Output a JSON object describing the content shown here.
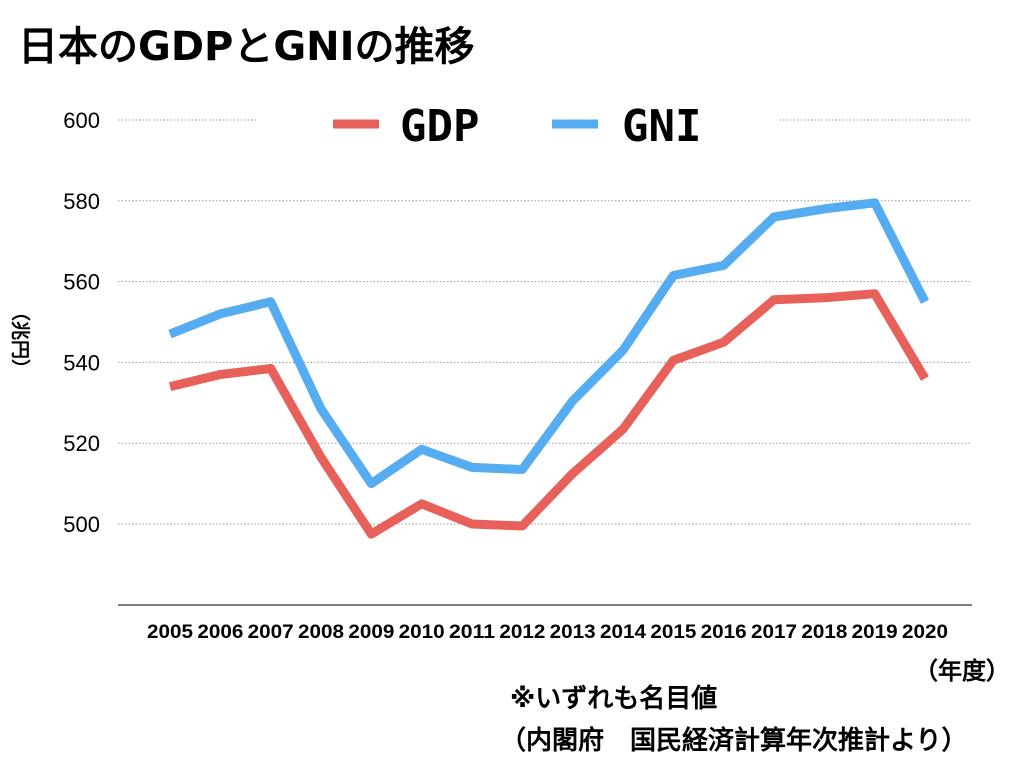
{
  "title": "日本のGDPとGNIの推移",
  "chart_data": {
    "type": "line",
    "title": "日本のGDPとGNIの推移",
    "ylabel": "（兆円）",
    "xunit": "（年度）",
    "categories": [
      "2005",
      "2006",
      "2007",
      "2008",
      "2009",
      "2010",
      "2011",
      "2012",
      "2013",
      "2014",
      "2015",
      "2016",
      "2017",
      "2018",
      "2019",
      "2020"
    ],
    "ylim": [
      480,
      610
    ],
    "yticks": [
      500,
      520,
      540,
      560,
      580,
      600
    ],
    "grid": true,
    "legend_position": "top",
    "series": [
      {
        "name": "GDP",
        "color": "#e8605a",
        "values": [
          534,
          537,
          538.5,
          516.5,
          497.5,
          505,
          500,
          499.5,
          512.5,
          523.5,
          540.5,
          545,
          555.5,
          556,
          557,
          536
        ]
      },
      {
        "name": "GNI",
        "color": "#55acf0",
        "values": [
          547,
          552,
          555,
          528.5,
          510,
          518.5,
          514,
          513.5,
          530.5,
          543,
          561.5,
          564,
          576,
          578,
          579.5,
          555
        ]
      }
    ]
  },
  "notes": {
    "line1": "※いずれも名目値",
    "line2": "（内閣府　国民経済計算年次推計より）"
  }
}
